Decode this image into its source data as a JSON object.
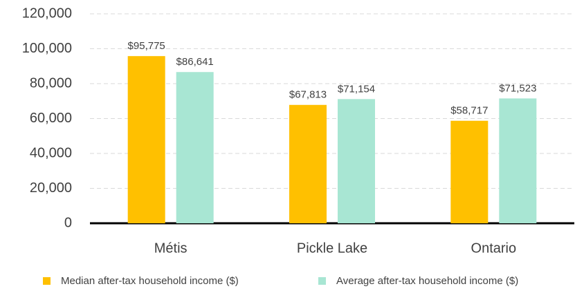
{
  "chart_data": {
    "type": "bar",
    "categories": [
      "Métis",
      "Pickle Lake",
      "Ontario"
    ],
    "series": [
      {
        "name": "Median after-tax household income ($)",
        "color": "#ffc000",
        "values": [
          95775,
          67813,
          58717
        ],
        "value_labels": [
          "$95,775",
          "$67,813",
          "$58,717"
        ]
      },
      {
        "name": "Average after-tax household income ($)",
        "color": "#a8e6d3",
        "values": [
          86641,
          71154,
          71523
        ],
        "value_labels": [
          "$86,641",
          "$71,154",
          "$71,523"
        ]
      }
    ],
    "ylim": [
      0,
      120000
    ],
    "yticks": [
      0,
      {
        "value": 20000,
        "label": "20,000"
      },
      {
        "value": 40000,
        "label": "40,000"
      },
      {
        "value": 60000,
        "label": "60,000"
      },
      {
        "value": 80000,
        "label": "80,000"
      },
      {
        "value": 100000,
        "label": "100,000"
      },
      {
        "value": 120000,
        "label": "120,000"
      }
    ],
    "grid": true,
    "legend": "bottom"
  }
}
